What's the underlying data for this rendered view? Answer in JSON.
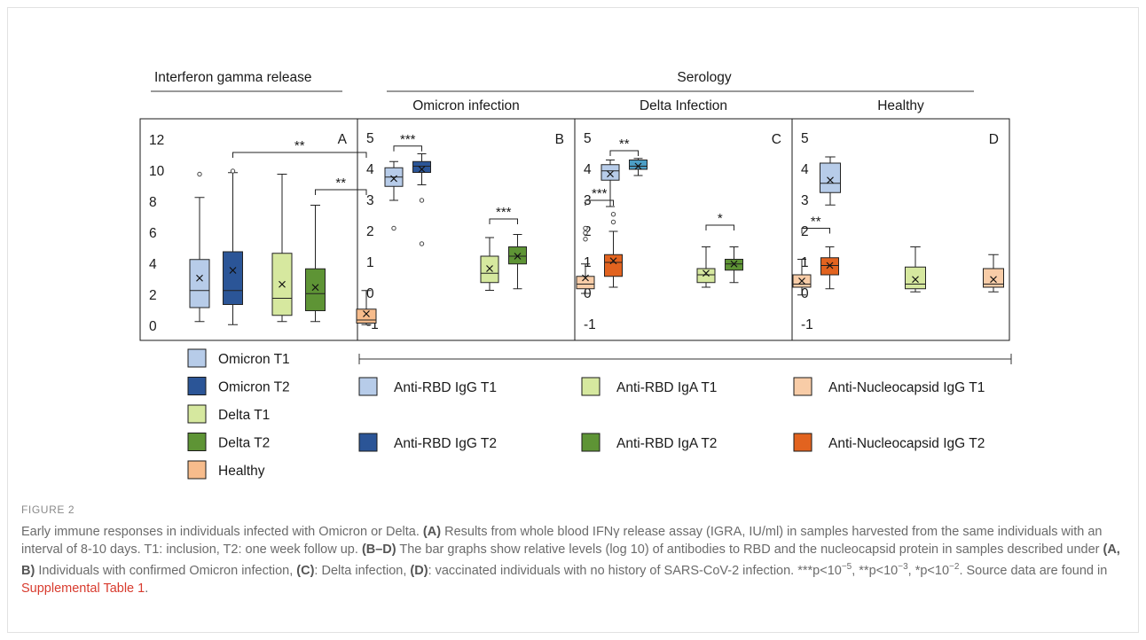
{
  "figure": {
    "header_left": "Interferon gamma release",
    "header_right": "Serology",
    "panels": [
      {
        "id": "A",
        "title": "",
        "letter": "A",
        "ticks": [
          "12",
          "10",
          "8",
          "6",
          "4",
          "2",
          "0"
        ]
      },
      {
        "id": "B",
        "title": "Omicron infection",
        "letter": "B",
        "ticks": [
          "5",
          "4",
          "3",
          "2",
          "1",
          "0",
          "-1"
        ]
      },
      {
        "id": "C",
        "title": "Delta Infection",
        "letter": "C",
        "ticks": [
          "5",
          "4",
          "3",
          "2",
          "1",
          "0",
          "-1"
        ]
      },
      {
        "id": "D",
        "title": "Healthy",
        "letter": "D",
        "ticks": [
          "5",
          "4",
          "3",
          "2",
          "1",
          "0",
          "-1"
        ]
      }
    ],
    "legend_left": [
      {
        "label": "Omicron T1",
        "color": "#b7cce9"
      },
      {
        "label": "Omicron T2",
        "color": "#2b5597"
      },
      {
        "label": "Delta T1",
        "color": "#d6e89f"
      },
      {
        "label": "Delta T2",
        "color": "#5e9435"
      },
      {
        "label": "Healthy",
        "color": "#f7bc8c"
      }
    ],
    "legend_right": [
      {
        "label": "Anti-RBD IgG T1",
        "color": "#b7cce9"
      },
      {
        "label": "Anti-RBD IgA T1",
        "color": "#d6e89f"
      },
      {
        "label": "Anti-Nucleocapsid IgG T1",
        "color": "#f8cca7"
      },
      {
        "label": "Anti-RBD IgG T2",
        "color": "#2b5597"
      },
      {
        "label": "Anti-RBD IgA T2",
        "color": "#5e9435"
      },
      {
        "label": "Anti-Nucleocapsid IgG T2",
        "color": "#e2631f"
      }
    ]
  },
  "chart_data": [
    {
      "type": "box",
      "panel": "A",
      "ylim": [
        0,
        12
      ],
      "boxes": [
        {
          "name": "Omicron T1",
          "color": "#b7cce9",
          "min": 0.3,
          "q1": 1.2,
          "median": 2.3,
          "q3": 4.3,
          "max": 8.3,
          "mean": 3.1,
          "outliers": [
            9.8
          ]
        },
        {
          "name": "Omicron T2",
          "color": "#2b5597",
          "min": 0.1,
          "q1": 1.4,
          "median": 2.3,
          "q3": 4.8,
          "max": 9.9,
          "mean": 3.6,
          "outliers": [
            10.0
          ]
        },
        {
          "name": "Delta T1",
          "color": "#d6e89f",
          "min": 0.3,
          "q1": 0.7,
          "median": 1.8,
          "q3": 4.7,
          "max": 9.8,
          "mean": 2.7,
          "outliers": []
        },
        {
          "name": "Delta T2",
          "color": "#5e9435",
          "min": 0.3,
          "q1": 1.0,
          "median": 2.1,
          "q3": 3.7,
          "max": 7.8,
          "mean": 2.5,
          "outliers": []
        },
        {
          "name": "Healthy",
          "color": "#f7bc8c",
          "min": 0.1,
          "q1": 0.2,
          "median": 0.4,
          "q3": 1.1,
          "max": 2.3,
          "mean": 0.8,
          "outliers": []
        }
      ],
      "significance": [
        {
          "label": "**",
          "from": 1,
          "to": 4,
          "y": 11.2
        },
        {
          "label": "**",
          "from": 3,
          "to": 4,
          "y": 8.8
        }
      ]
    },
    {
      "type": "box",
      "panel": "B",
      "ylim": [
        -1,
        5
      ],
      "boxes": [
        {
          "name": "Anti-RBD IgG T1",
          "color": "#b7cce9",
          "min": 3.0,
          "q1": 3.45,
          "median": 3.75,
          "q3": 4.05,
          "max": 4.25,
          "mean": 3.7,
          "outliers": [
            2.1
          ]
        },
        {
          "name": "Anti-RBD IgG T2",
          "color": "#2b5597",
          "min": 3.5,
          "q1": 3.9,
          "median": 4.1,
          "q3": 4.25,
          "max": 4.5,
          "mean": 4.0,
          "outliers": [
            3.0,
            1.6
          ]
        },
        {
          "name": "Anti-RBD IgA T1",
          "color": "#d6e89f",
          "min": 0.1,
          "q1": 0.35,
          "median": 0.65,
          "q3": 1.2,
          "max": 1.8,
          "mean": 0.8,
          "outliers": []
        },
        {
          "name": "Anti-RBD IgA T2",
          "color": "#5e9435",
          "min": 0.15,
          "q1": 0.95,
          "median": 1.2,
          "q3": 1.5,
          "max": 1.9,
          "mean": 1.2,
          "outliers": []
        },
        {
          "name": "Anti-Nucleocapsid IgG T1",
          "color": "#f8cca7",
          "min": 0.0,
          "q1": 0.15,
          "median": 0.3,
          "q3": 0.55,
          "max": 0.95,
          "mean": 0.5,
          "outliers": [
            1.75,
            1.95,
            2.1
          ]
        },
        {
          "name": "Anti-Nucleocapsid IgG T2",
          "color": "#e2631f",
          "min": 0.2,
          "q1": 0.55,
          "median": 1.0,
          "q3": 1.25,
          "max": 2.0,
          "mean": 1.05,
          "outliers": [
            2.3,
            2.55
          ]
        }
      ],
      "significance": [
        {
          "label": "***",
          "from": 0,
          "to": 1,
          "y": 4.75
        },
        {
          "label": "***",
          "from": 2,
          "to": 3,
          "y": 2.4
        },
        {
          "label": "***",
          "from": 4,
          "to": 5,
          "y": 3.0
        }
      ]
    },
    {
      "type": "box",
      "panel": "C",
      "ylim": [
        -1,
        5
      ],
      "boxes": [
        {
          "name": "Anti-RBD IgG T1",
          "color": "#b7cce9",
          "min": 2.8,
          "q1": 3.65,
          "median": 3.95,
          "q3": 4.15,
          "max": 4.3,
          "mean": 3.85,
          "outliers": []
        },
        {
          "name": "Anti-RBD IgG T2",
          "color": "#4c9ec5",
          "min": 3.8,
          "q1": 4.0,
          "median": 4.1,
          "q3": 4.3,
          "max": 4.35,
          "mean": 4.1,
          "outliers": []
        },
        {
          "name": "Anti-RBD IgA T1",
          "color": "#d6e89f",
          "min": 0.2,
          "q1": 0.35,
          "median": 0.6,
          "q3": 0.8,
          "max": 1.5,
          "mean": 0.65,
          "outliers": []
        },
        {
          "name": "Anti-RBD IgA T2",
          "color": "#5e9435",
          "min": 0.35,
          "q1": 0.75,
          "median": 0.95,
          "q3": 1.1,
          "max": 1.5,
          "mean": 0.95,
          "outliers": []
        },
        {
          "name": "Anti-Nucleocapsid IgG T1",
          "color": "#f8cca7",
          "min": -0.05,
          "q1": 0.2,
          "median": 0.3,
          "q3": 0.6,
          "max": 1.1,
          "mean": 0.4,
          "outliers": []
        },
        {
          "name": "Anti-Nucleocapsid IgG T2",
          "color": "#e2631f",
          "min": 0.15,
          "q1": 0.6,
          "median": 0.9,
          "q3": 1.15,
          "max": 1.5,
          "mean": 0.9,
          "outliers": []
        }
      ],
      "significance": [
        {
          "label": "**",
          "from": 0,
          "to": 1,
          "y": 4.6
        },
        {
          "label": "*",
          "from": 2,
          "to": 3,
          "y": 2.2
        },
        {
          "label": "**",
          "from": 4,
          "to": 5,
          "y": 2.1
        }
      ]
    },
    {
      "type": "box",
      "panel": "D",
      "ylim": [
        -1,
        5
      ],
      "boxes": [
        {
          "name": "Anti-RBD IgG T1",
          "color": "#b7cce9",
          "min": 2.85,
          "q1": 3.25,
          "median": 3.55,
          "q3": 4.2,
          "max": 4.4,
          "mean": 3.65,
          "outliers": []
        },
        {
          "name": "Anti-RBD IgA T1",
          "color": "#d6e89f",
          "min": 0.05,
          "q1": 0.15,
          "median": 0.3,
          "q3": 0.85,
          "max": 1.5,
          "mean": 0.45,
          "outliers": []
        },
        {
          "name": "Anti-Nucleocapsid IgG T1",
          "color": "#f8cca7",
          "min": 0.05,
          "q1": 0.2,
          "median": 0.3,
          "q3": 0.8,
          "max": 1.25,
          "mean": 0.45,
          "outliers": []
        }
      ],
      "significance": []
    }
  ],
  "caption": {
    "label": "FIGURE 2",
    "parts": [
      {
        "t": "Early immune responses in individuals infected with Omicron or Delta. "
      },
      {
        "t": "(A)",
        "b": true
      },
      {
        "t": " Results from whole blood IFNγ release assay (IGRA, IU/ml) in samples harvested from the same individuals with an interval of 8-10 days. T1: inclusion, T2: one week follow up. "
      },
      {
        "t": "(B–D)",
        "b": true
      },
      {
        "t": " The bar graphs show relative levels (log 10) of antibodies to RBD and the nucleocapsid protein in samples described under "
      },
      {
        "t": "(A, B)",
        "b": true
      },
      {
        "t": " Individuals with confirmed Omicron infection, "
      },
      {
        "t": "(C)",
        "b": true
      },
      {
        "t": ": Delta infection, "
      },
      {
        "t": "(D)",
        "b": true
      },
      {
        "t": ": vaccinated individuals with no history of SARS-CoV-2 infection. ***p<10"
      },
      {
        "t": "−5",
        "sup": true
      },
      {
        "t": ", **p<10"
      },
      {
        "t": "−3",
        "sup": true
      },
      {
        "t": ", *p<10"
      },
      {
        "t": "−2",
        "sup": true
      },
      {
        "t": ". Source data are found in "
      },
      {
        "t": "Supplemental Table 1",
        "link": true
      },
      {
        "t": "."
      }
    ]
  }
}
